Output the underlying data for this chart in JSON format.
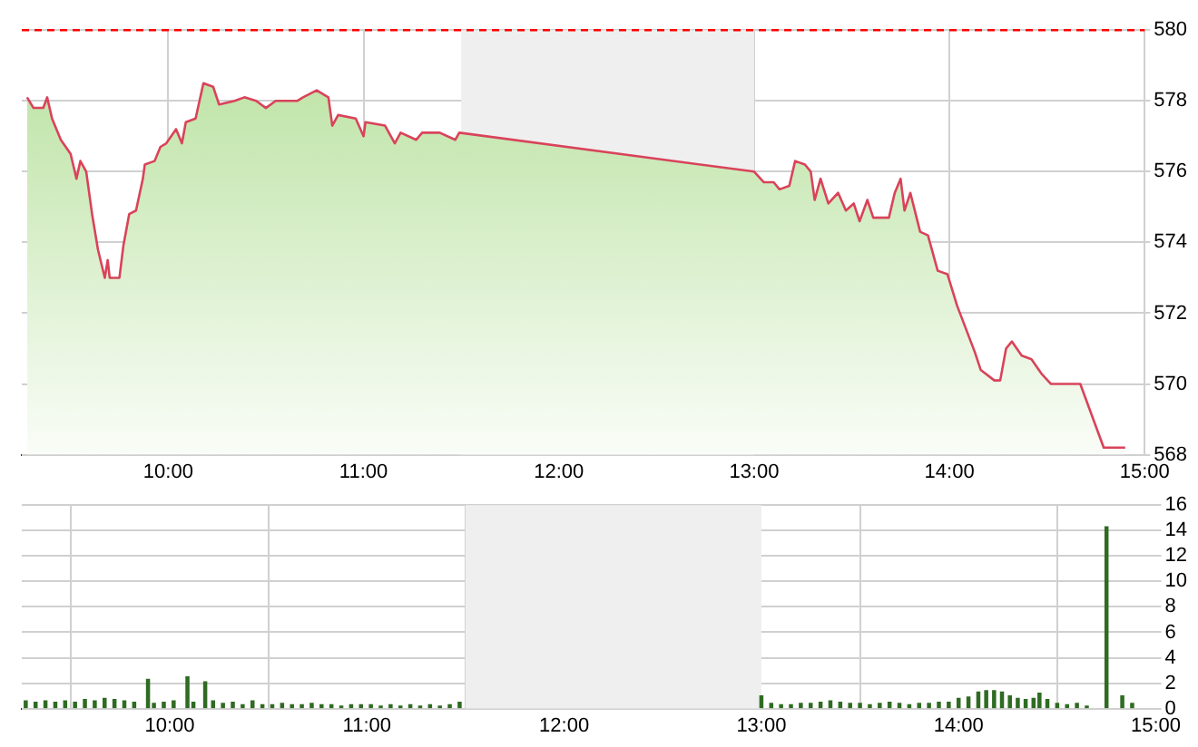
{
  "chart_data": [
    {
      "type": "area",
      "x": [
        9.277,
        9.31,
        9.36,
        9.38,
        9.405,
        9.45,
        9.5,
        9.53,
        9.55,
        9.58,
        9.61,
        9.64,
        9.675,
        9.69,
        9.7,
        9.75,
        9.77,
        9.8,
        9.835,
        9.87,
        9.88,
        9.93,
        9.96,
        9.99,
        10.04,
        10.07,
        10.09,
        10.14,
        10.18,
        10.23,
        10.26,
        10.34,
        10.39,
        10.45,
        10.5,
        10.55,
        10.66,
        10.69,
        10.76,
        10.82,
        10.84,
        10.87,
        10.96,
        11.0,
        11.01,
        11.11,
        11.16,
        11.19,
        11.27,
        11.3,
        11.39,
        11.47,
        11.49,
        13.0,
        13.05,
        13.1,
        13.13,
        13.18,
        13.21,
        13.26,
        13.29,
        13.31,
        13.34,
        13.38,
        13.43,
        13.47,
        13.51,
        13.54,
        13.58,
        13.61,
        13.69,
        13.72,
        13.75,
        13.77,
        13.8,
        13.85,
        13.89,
        13.94,
        13.99,
        14.04,
        14.13,
        14.16,
        14.23,
        14.26,
        14.29,
        14.32,
        14.37,
        14.42,
        14.47,
        14.52,
        14.67,
        14.79,
        14.9
      ],
      "series": [
        {
          "color": "#d9435a",
          "values": [
            578.1,
            577.8,
            577.8,
            578.1,
            577.5,
            576.9,
            576.5,
            575.8,
            576.3,
            576.0,
            574.8,
            573.8,
            573.0,
            573.5,
            573.0,
            573.0,
            573.9,
            574.8,
            574.9,
            575.8,
            576.2,
            576.3,
            576.7,
            576.8,
            577.2,
            576.8,
            577.4,
            577.5,
            578.5,
            578.4,
            577.9,
            578.0,
            578.1,
            578.0,
            577.8,
            578.0,
            578.0,
            578.1,
            578.3,
            578.1,
            577.3,
            577.6,
            577.5,
            577.0,
            577.4,
            577.3,
            576.8,
            577.1,
            576.9,
            577.1,
            577.1,
            576.9,
            577.1,
            576.0,
            575.7,
            575.7,
            575.5,
            575.6,
            576.3,
            576.2,
            576.0,
            575.2,
            575.8,
            575.1,
            575.4,
            574.9,
            575.1,
            574.6,
            575.2,
            574.7,
            574.7,
            575.4,
            575.8,
            574.9,
            575.4,
            574.3,
            574.2,
            573.2,
            573.1,
            572.2,
            570.9,
            570.4,
            570.1,
            570.1,
            571.0,
            571.2,
            570.8,
            570.7,
            570.3,
            570.0,
            570.0,
            568.2,
            568.2
          ]
        }
      ],
      "xlim": [
        9.25,
        15
      ],
      "xticks": [
        {
          "value": 10,
          "label": "10:00"
        },
        {
          "value": 11,
          "label": "11:00"
        },
        {
          "value": 12,
          "label": "12:00"
        },
        {
          "value": 13,
          "label": "13:00"
        },
        {
          "value": 14,
          "label": "14:00"
        },
        {
          "value": 15,
          "label": "15:00"
        }
      ],
      "ylim": [
        568,
        580
      ],
      "yticks": [
        568,
        570,
        572,
        574,
        576,
        578,
        580
      ],
      "grid": true,
      "legend": false,
      "ref_lines": [
        {
          "axis": "y",
          "value": 580,
          "color": "#ff0000",
          "line_style": "dashed"
        }
      ],
      "bands": [
        {
          "axis": "x",
          "from": 11.5,
          "to": 13,
          "color": "#efefef"
        }
      ]
    },
    {
      "type": "bar",
      "x": [
        9.27,
        9.32,
        9.37,
        9.42,
        9.47,
        9.52,
        9.57,
        9.62,
        9.67,
        9.72,
        9.77,
        9.82,
        9.89,
        9.92,
        9.97,
        10.02,
        10.09,
        10.12,
        10.18,
        10.22,
        10.27,
        10.32,
        10.37,
        10.42,
        10.47,
        10.52,
        10.57,
        10.62,
        10.67,
        10.72,
        10.77,
        10.82,
        10.87,
        10.92,
        10.97,
        11.02,
        11.07,
        11.12,
        11.17,
        11.22,
        11.27,
        11.32,
        11.37,
        11.42,
        11.47,
        13.0,
        13.05,
        13.1,
        13.15,
        13.2,
        13.25,
        13.3,
        13.35,
        13.4,
        13.45,
        13.5,
        13.55,
        13.6,
        13.65,
        13.7,
        13.75,
        13.8,
        13.85,
        13.9,
        13.95,
        14.0,
        14.05,
        14.1,
        14.14,
        14.18,
        14.22,
        14.26,
        14.3,
        14.34,
        14.38,
        14.41,
        14.45,
        14.5,
        14.55,
        14.6,
        14.65,
        14.75,
        14.83,
        14.88
      ],
      "series": [
        {
          "color": "#2f6b22",
          "values": [
            0.6,
            0.5,
            0.6,
            0.5,
            0.6,
            0.5,
            0.7,
            0.6,
            0.8,
            0.7,
            0.6,
            0.5,
            2.3,
            0.4,
            0.5,
            0.6,
            2.5,
            0.5,
            2.1,
            0.6,
            0.4,
            0.5,
            0.3,
            0.6,
            0.3,
            0.3,
            0.4,
            0.3,
            0.3,
            0.4,
            0.3,
            0.3,
            0.2,
            0.3,
            0.3,
            0.3,
            0.2,
            0.3,
            0.2,
            0.3,
            0.2,
            0.3,
            0.2,
            0.3,
            0.5,
            1.0,
            0.4,
            0.3,
            0.3,
            0.4,
            0.4,
            0.5,
            0.6,
            0.5,
            0.4,
            0.4,
            0.3,
            0.4,
            0.5,
            0.4,
            0.3,
            0.4,
            0.4,
            0.5,
            0.5,
            0.8,
            0.9,
            1.3,
            1.4,
            1.4,
            1.3,
            1.0,
            0.8,
            0.7,
            0.8,
            1.2,
            0.7,
            0.4,
            0.3,
            0.4,
            0.2,
            14.3,
            1.0,
            0.4
          ]
        }
      ],
      "xlim": [
        9.25,
        15
      ],
      "xticks": [
        {
          "value": 10,
          "label": "10:00"
        },
        {
          "value": 11,
          "label": "11:00"
        },
        {
          "value": 12,
          "label": "12:00"
        },
        {
          "value": 13,
          "label": "13:00"
        },
        {
          "value": 14,
          "label": "14:00"
        },
        {
          "value": 15,
          "label": "15:00"
        }
      ],
      "ylim": [
        0,
        16
      ],
      "yticks": [
        0,
        2,
        4,
        6,
        8,
        10,
        12,
        14,
        16
      ],
      "grid": true,
      "legend": false,
      "bands": [
        {
          "axis": "x",
          "from": 11.5,
          "to": 13,
          "color": "#efefef"
        }
      ]
    }
  ]
}
